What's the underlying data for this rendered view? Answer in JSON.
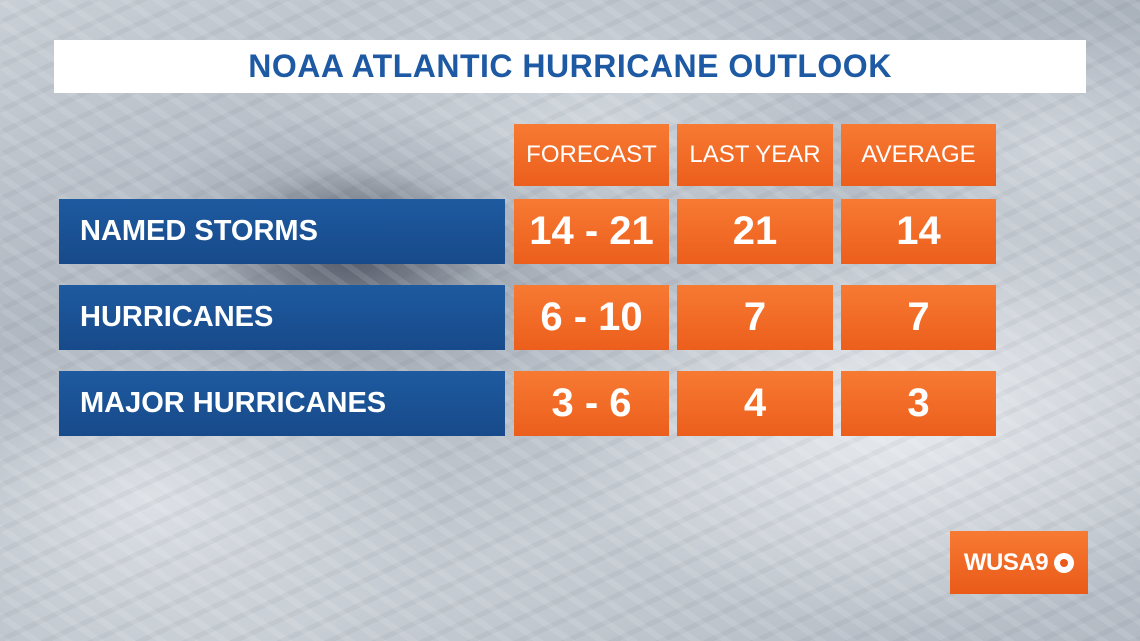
{
  "title": "NOAA ATLANTIC HURRICANE OUTLOOK",
  "columns": [
    "FORECAST",
    "LAST YEAR",
    "AVERAGE"
  ],
  "rows": [
    {
      "label": "NAMED STORMS",
      "forecast": "14 - 21",
      "last_year": "21",
      "average": "14"
    },
    {
      "label": "HURRICANES",
      "forecast": "6 - 10",
      "last_year": "7",
      "average": "7"
    },
    {
      "label": "MAJOR HURRICANES",
      "forecast": "3 - 6",
      "last_year": "4",
      "average": "3"
    }
  ],
  "logo": {
    "text": "WUSA9",
    "icon": "cbs-eye-icon"
  },
  "colors": {
    "title_text": "#1d5aa3",
    "row_label_bg": "#1e5aa0",
    "cell_bg": "#f77a33"
  }
}
